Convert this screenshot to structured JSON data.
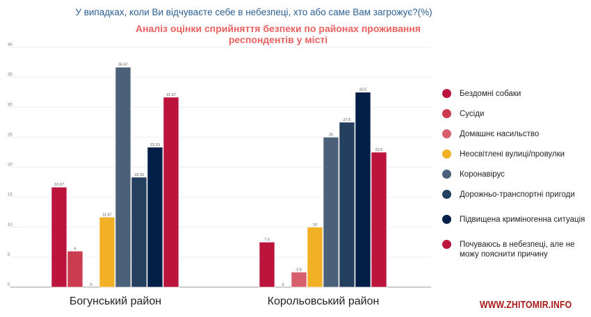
{
  "title": "У випадках, коли Ви відчуваєте себе в небезпеці, хто або саме Вам загрожує?(%)",
  "subtitle_line1": "Аналіз оцінки сприйняття безпеки по районах проживання",
  "subtitle_line2": "респондентів у місті",
  "watermark": "WWW.ZHITOMIR.INFO",
  "chart_data": {
    "type": "bar",
    "title": "Аналіз оцінки сприйняття безпеки по районах проживання респондентів у місті",
    "categories": [
      "Богунський район",
      "Корольовський район"
    ],
    "ylim": [
      0,
      40
    ],
    "yticks": [
      0,
      5,
      10,
      15,
      20,
      25,
      30,
      35,
      40
    ],
    "grid": true,
    "legend_position": "right",
    "series": [
      {
        "name": "Бездомні собаки",
        "color": "#bb143d",
        "values": [
          16.67,
          7.5
        ],
        "labels": [
          "16.67",
          "7.5"
        ]
      },
      {
        "name": "Сусіди",
        "color": "#cc3c50",
        "values": [
          6,
          0
        ],
        "labels": [
          "6",
          "0"
        ]
      },
      {
        "name": "Домашнє насильство",
        "color": "#d8606e",
        "values": [
          0,
          2.5
        ],
        "labels": [
          "0",
          "2.5"
        ]
      },
      {
        "name": "Неосвітлені вулиці/провулки",
        "color": "#f2b025",
        "values": [
          11.67,
          10
        ],
        "labels": [
          "11.67",
          "10"
        ]
      },
      {
        "name": "Коронавірус",
        "color": "#4a6179",
        "values": [
          36.67,
          25
        ],
        "labels": [
          "36.67",
          "25"
        ]
      },
      {
        "name": "Дорожньо-транспортні пригоди",
        "color": "#253f5f",
        "values": [
          18.33,
          27.5
        ],
        "labels": [
          "18.33",
          "27.5"
        ]
      },
      {
        "name": "Підвищена криміногенна ситуація",
        "color": "#011f47",
        "values": [
          23.33,
          32.5
        ],
        "labels": [
          "23.33",
          "32.5"
        ]
      },
      {
        "name": "Почуваюсь в небезпеці, але не можу пояснити причину",
        "color": "#bb143d",
        "values": [
          31.67,
          22.5
        ],
        "labels": [
          "31.67",
          "22.5"
        ]
      }
    ]
  }
}
